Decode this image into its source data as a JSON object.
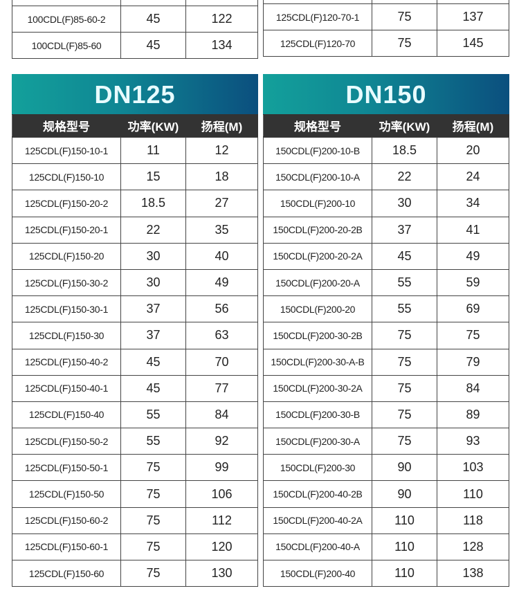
{
  "top_left": {
    "rows": [
      {
        "model": "100CDL(F)85-60-2",
        "power": "45",
        "head": "122"
      },
      {
        "model": "100CDL(F)85-60",
        "power": "45",
        "head": "134"
      }
    ]
  },
  "top_right": {
    "rows": [
      {
        "model": "125CDL(F)120-70-1",
        "power": "75",
        "head": "137"
      },
      {
        "model": "125CDL(F)120-70",
        "power": "75",
        "head": "145"
      }
    ]
  },
  "headers": {
    "model": "规格型号",
    "power": "功率(KW)",
    "head": "扬程(M)"
  },
  "colors": {
    "title_gradient_start": "#13a09b",
    "title_gradient_end": "#0b4f7e",
    "header_bg": "#333333"
  },
  "dn125": {
    "title": "DN125",
    "rows": [
      {
        "model": "125CDL(F)150-10-1",
        "power": "11",
        "head": "12"
      },
      {
        "model": "125CDL(F)150-10",
        "power": "15",
        "head": "18"
      },
      {
        "model": "125CDL(F)150-20-2",
        "power": "18.5",
        "head": "27"
      },
      {
        "model": "125CDL(F)150-20-1",
        "power": "22",
        "head": "35"
      },
      {
        "model": "125CDL(F)150-20",
        "power": "30",
        "head": "40"
      },
      {
        "model": "125CDL(F)150-30-2",
        "power": "30",
        "head": "49"
      },
      {
        "model": "125CDL(F)150-30-1",
        "power": "37",
        "head": "56"
      },
      {
        "model": "125CDL(F)150-30",
        "power": "37",
        "head": "63"
      },
      {
        "model": "125CDL(F)150-40-2",
        "power": "45",
        "head": "70"
      },
      {
        "model": "125CDL(F)150-40-1",
        "power": "45",
        "head": "77"
      },
      {
        "model": "125CDL(F)150-40",
        "power": "55",
        "head": "84"
      },
      {
        "model": "125CDL(F)150-50-2",
        "power": "55",
        "head": "92"
      },
      {
        "model": "125CDL(F)150-50-1",
        "power": "75",
        "head": "99"
      },
      {
        "model": "125CDL(F)150-50",
        "power": "75",
        "head": "106"
      },
      {
        "model": "125CDL(F)150-60-2",
        "power": "75",
        "head": "112"
      },
      {
        "model": "125CDL(F)150-60-1",
        "power": "75",
        "head": "120"
      },
      {
        "model": "125CDL(F)150-60",
        "power": "75",
        "head": "130"
      }
    ]
  },
  "dn150": {
    "title": "DN150",
    "rows": [
      {
        "model": "150CDL(F)200-10-B",
        "power": "18.5",
        "head": "20"
      },
      {
        "model": "150CDL(F)200-10-A",
        "power": "22",
        "head": "24"
      },
      {
        "model": "150CDL(F)200-10",
        "power": "30",
        "head": "34"
      },
      {
        "model": "150CDL(F)200-20-2B",
        "power": "37",
        "head": "41"
      },
      {
        "model": "150CDL(F)200-20-2A",
        "power": "45",
        "head": "49"
      },
      {
        "model": "150CDL(F)200-20-A",
        "power": "55",
        "head": "59"
      },
      {
        "model": "150CDL(F)200-20",
        "power": "55",
        "head": "69"
      },
      {
        "model": "150CDL(F)200-30-2B",
        "power": "75",
        "head": "75"
      },
      {
        "model": "150CDL(F)200-30-A-B",
        "power": "75",
        "head": "79"
      },
      {
        "model": "150CDL(F)200-30-2A",
        "power": "75",
        "head": "84"
      },
      {
        "model": "150CDL(F)200-30-B",
        "power": "75",
        "head": "89"
      },
      {
        "model": "150CDL(F)200-30-A",
        "power": "75",
        "head": "93"
      },
      {
        "model": "150CDL(F)200-30",
        "power": "90",
        "head": "103"
      },
      {
        "model": "150CDL(F)200-40-2B",
        "power": "90",
        "head": "110"
      },
      {
        "model": "150CDL(F)200-40-2A",
        "power": "110",
        "head": "118"
      },
      {
        "model": "150CDL(F)200-40-A",
        "power": "110",
        "head": "128"
      },
      {
        "model": "150CDL(F)200-40",
        "power": "110",
        "head": "138"
      }
    ]
  }
}
